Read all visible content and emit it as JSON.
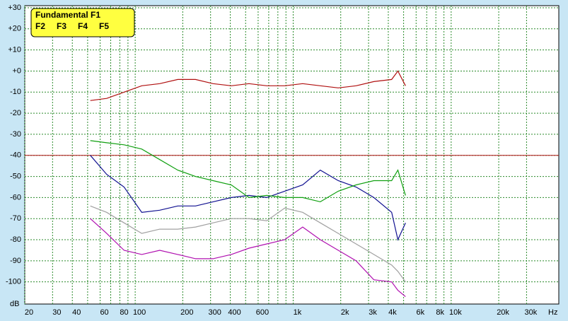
{
  "chart_data": {
    "type": "line",
    "x_label": "Hz",
    "y_label": "dB",
    "log_x": true,
    "grid": true,
    "xlim": [
      20,
      48000
    ],
    "ylim": [
      -110.5,
      31
    ],
    "xticks": [
      {
        "value": 20,
        "label": "20"
      },
      30,
      40,
      60,
      80,
      100,
      200,
      300,
      400,
      600,
      {
        "value": 1000,
        "label": "1k"
      },
      {
        "value": 2000,
        "label": "2k"
      },
      {
        "value": 3000,
        "label": "3k"
      },
      {
        "value": 4000,
        "label": "4k"
      },
      {
        "value": 6000,
        "label": "6k"
      },
      {
        "value": 8000,
        "label": "8k"
      },
      {
        "value": 10000,
        "label": "10k"
      },
      {
        "value": 20000,
        "label": "20k"
      },
      {
        "value": 30000,
        "label": "30k"
      }
    ],
    "x_minor": [
      50,
      70,
      90,
      500,
      700,
      800,
      900,
      5000,
      7000,
      9000
    ],
    "yticks": [
      {
        "value": 30,
        "label": "+30"
      },
      {
        "value": 20,
        "label": "+20"
      },
      {
        "value": 10,
        "label": "+10"
      },
      {
        "value": 0,
        "label": "+0"
      },
      -10,
      -20,
      -30,
      -40,
      -50,
      -60,
      -70,
      -80,
      -90,
      -100
    ],
    "reference_line": {
      "value": -40,
      "color": "#b01010"
    },
    "x": [
      52,
      66,
      85,
      110,
      143,
      186,
      241,
      311,
      406,
      525,
      680,
      884,
      1148,
      1484,
      1928,
      2500,
      3240,
      4200,
      4600,
      5140
    ],
    "series": [
      {
        "name": "Fundamental F1",
        "color": "#b01010",
        "values": [
          -14,
          -13,
          -10,
          -7,
          -6,
          -4,
          -4,
          -6,
          -7,
          -6,
          -7,
          -7,
          -6,
          -7,
          -8,
          -7,
          -5,
          -4,
          0,
          -7
        ]
      },
      {
        "name": "F2",
        "color": "#10a010",
        "values": [
          -33,
          -34,
          -35,
          -37,
          -42,
          -47,
          -50,
          -52,
          -54,
          -60,
          -59,
          -60,
          -60,
          -62,
          -57,
          -54,
          -52,
          -52,
          -47,
          -59
        ]
      },
      {
        "name": "F3",
        "color": "#101090",
        "values": [
          -40,
          -49,
          -55,
          -67,
          -66,
          -64,
          -64,
          -62,
          -60,
          -59,
          -60,
          -57,
          -54,
          -47,
          -52,
          -55,
          -60,
          -67,
          -80,
          -72
        ]
      },
      {
        "name": "F4",
        "color": "#b010b0",
        "values": [
          -70,
          -77,
          -85,
          -87,
          -85,
          -87,
          -89,
          -89,
          -87,
          -84,
          -82,
          -80,
          -74,
          -80,
          -85,
          -90,
          -99,
          -100,
          -104,
          -107
        ]
      },
      {
        "name": "F5",
        "color": "#a0a0a0",
        "values": [
          -64,
          -67,
          -72,
          -77,
          -75,
          -75,
          -74,
          -72,
          -70,
          -70,
          -71,
          -65,
          -67,
          -72,
          -77,
          -82,
          -87,
          -92,
          -95,
          -100
        ]
      }
    ]
  }
}
